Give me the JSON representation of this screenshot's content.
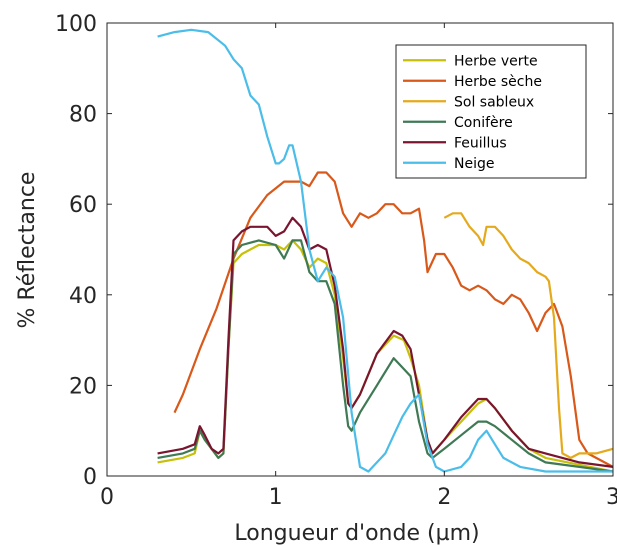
{
  "chart_data": {
    "type": "line",
    "title": "",
    "xlabel": "Longueur d'onde (µm)",
    "ylabel": "% Réflectance",
    "xlim": [
      0,
      3
    ],
    "ylim": [
      0,
      100
    ],
    "xticks": [
      0,
      1,
      2,
      3
    ],
    "yticks": [
      0,
      20,
      40,
      60,
      80,
      100
    ],
    "xtick_labels": [
      "0",
      "1",
      "2",
      "3"
    ],
    "ytick_labels": [
      "0",
      "20",
      "40",
      "60",
      "80",
      "100"
    ],
    "grid": false,
    "legend_position": "top-right",
    "series": [
      {
        "name": "Herbe verte",
        "color": "#c6c00a",
        "points": [
          [
            0.3,
            3
          ],
          [
            0.45,
            4
          ],
          [
            0.52,
            5
          ],
          [
            0.55,
            10
          ],
          [
            0.58,
            8
          ],
          [
            0.62,
            6
          ],
          [
            0.66,
            4
          ],
          [
            0.69,
            5
          ],
          [
            0.72,
            28
          ],
          [
            0.75,
            47
          ],
          [
            0.8,
            49
          ],
          [
            0.9,
            51
          ],
          [
            1.0,
            51
          ],
          [
            1.05,
            50
          ],
          [
            1.1,
            52
          ],
          [
            1.15,
            50
          ],
          [
            1.2,
            46
          ],
          [
            1.25,
            48
          ],
          [
            1.3,
            47
          ],
          [
            1.35,
            40
          ],
          [
            1.4,
            26
          ],
          [
            1.43,
            16
          ],
          [
            1.45,
            15
          ],
          [
            1.5,
            18
          ],
          [
            1.6,
            27
          ],
          [
            1.7,
            31
          ],
          [
            1.76,
            30
          ],
          [
            1.8,
            26
          ],
          [
            1.85,
            20
          ],
          [
            1.9,
            8
          ],
          [
            1.93,
            5
          ],
          [
            2.0,
            8
          ],
          [
            2.1,
            12
          ],
          [
            2.2,
            16
          ],
          [
            2.25,
            17
          ],
          [
            2.3,
            15
          ],
          [
            2.4,
            10
          ],
          [
            2.5,
            6
          ],
          [
            2.6,
            4
          ],
          [
            3.0,
            1
          ]
        ]
      },
      {
        "name": "Herbe sèche",
        "color": "#d8591a",
        "points": [
          [
            0.4,
            14
          ],
          [
            0.45,
            18
          ],
          [
            0.55,
            28
          ],
          [
            0.65,
            37
          ],
          [
            0.75,
            48
          ],
          [
            0.85,
            57
          ],
          [
            0.95,
            62
          ],
          [
            1.05,
            65
          ],
          [
            1.15,
            65
          ],
          [
            1.2,
            64
          ],
          [
            1.25,
            67
          ],
          [
            1.3,
            67
          ],
          [
            1.35,
            65
          ],
          [
            1.4,
            58
          ],
          [
            1.45,
            55
          ],
          [
            1.5,
            58
          ],
          [
            1.55,
            57
          ],
          [
            1.6,
            58
          ],
          [
            1.65,
            60
          ],
          [
            1.7,
            60
          ],
          [
            1.75,
            58
          ],
          [
            1.8,
            58
          ],
          [
            1.85,
            59
          ],
          [
            1.88,
            52
          ],
          [
            1.9,
            45
          ],
          [
            1.95,
            49
          ],
          [
            2.0,
            49
          ],
          [
            2.05,
            46
          ],
          [
            2.1,
            42
          ],
          [
            2.15,
            41
          ],
          [
            2.2,
            42
          ],
          [
            2.25,
            41
          ],
          [
            2.3,
            39
          ],
          [
            2.35,
            38
          ],
          [
            2.4,
            40
          ],
          [
            2.45,
            39
          ],
          [
            2.5,
            36
          ],
          [
            2.55,
            32
          ],
          [
            2.6,
            36
          ],
          [
            2.65,
            38
          ],
          [
            2.7,
            33
          ],
          [
            2.75,
            22
          ],
          [
            2.8,
            8
          ],
          [
            2.85,
            5
          ],
          [
            2.95,
            3
          ],
          [
            3.0,
            2
          ]
        ]
      },
      {
        "name": "Sol sableux",
        "color": "#e5aa1c",
        "points": [
          [
            2.0,
            57
          ],
          [
            2.05,
            58
          ],
          [
            2.1,
            58
          ],
          [
            2.15,
            55
          ],
          [
            2.2,
            53
          ],
          [
            2.23,
            51
          ],
          [
            2.25,
            55
          ],
          [
            2.3,
            55
          ],
          [
            2.35,
            53
          ],
          [
            2.4,
            50
          ],
          [
            2.45,
            48
          ],
          [
            2.5,
            47
          ],
          [
            2.55,
            45
          ],
          [
            2.6,
            44
          ],
          [
            2.62,
            43
          ],
          [
            2.65,
            35
          ],
          [
            2.68,
            15
          ],
          [
            2.7,
            5
          ],
          [
            2.75,
            4
          ],
          [
            2.8,
            5
          ],
          [
            2.9,
            5
          ],
          [
            3.0,
            6
          ]
        ]
      },
      {
        "name": "Conifère",
        "color": "#3f7a55",
        "points": [
          [
            0.3,
            4
          ],
          [
            0.45,
            5
          ],
          [
            0.52,
            6
          ],
          [
            0.55,
            10
          ],
          [
            0.58,
            8
          ],
          [
            0.62,
            6
          ],
          [
            0.66,
            4
          ],
          [
            0.69,
            5
          ],
          [
            0.72,
            28
          ],
          [
            0.75,
            49
          ],
          [
            0.8,
            51
          ],
          [
            0.9,
            52
          ],
          [
            1.0,
            51
          ],
          [
            1.05,
            48
          ],
          [
            1.1,
            52
          ],
          [
            1.15,
            52
          ],
          [
            1.2,
            45
          ],
          [
            1.25,
            43
          ],
          [
            1.3,
            43
          ],
          [
            1.35,
            38
          ],
          [
            1.4,
            20
          ],
          [
            1.43,
            11
          ],
          [
            1.45,
            10
          ],
          [
            1.5,
            14
          ],
          [
            1.6,
            20
          ],
          [
            1.7,
            26
          ],
          [
            1.75,
            24
          ],
          [
            1.8,
            22
          ],
          [
            1.85,
            12
          ],
          [
            1.9,
            5
          ],
          [
            1.93,
            4
          ],
          [
            2.0,
            6
          ],
          [
            2.1,
            9
          ],
          [
            2.2,
            12
          ],
          [
            2.25,
            12
          ],
          [
            2.3,
            11
          ],
          [
            2.4,
            8
          ],
          [
            2.5,
            5
          ],
          [
            2.6,
            3
          ],
          [
            2.8,
            2
          ],
          [
            3.0,
            1
          ]
        ]
      },
      {
        "name": "Feuillus",
        "color": "#7a1530",
        "points": [
          [
            0.3,
            5
          ],
          [
            0.45,
            6
          ],
          [
            0.52,
            7
          ],
          [
            0.55,
            11
          ],
          [
            0.58,
            9
          ],
          [
            0.62,
            6
          ],
          [
            0.66,
            5
          ],
          [
            0.69,
            6
          ],
          [
            0.72,
            30
          ],
          [
            0.75,
            52
          ],
          [
            0.8,
            54
          ],
          [
            0.85,
            55
          ],
          [
            0.95,
            55
          ],
          [
            1.0,
            53
          ],
          [
            1.05,
            54
          ],
          [
            1.1,
            57
          ],
          [
            1.15,
            55
          ],
          [
            1.2,
            50
          ],
          [
            1.25,
            51
          ],
          [
            1.3,
            50
          ],
          [
            1.35,
            42
          ],
          [
            1.4,
            28
          ],
          [
            1.43,
            16
          ],
          [
            1.45,
            15
          ],
          [
            1.5,
            18
          ],
          [
            1.6,
            27
          ],
          [
            1.7,
            32
          ],
          [
            1.75,
            31
          ],
          [
            1.8,
            28
          ],
          [
            1.85,
            18
          ],
          [
            1.9,
            8
          ],
          [
            1.93,
            5
          ],
          [
            2.0,
            8
          ],
          [
            2.1,
            13
          ],
          [
            2.2,
            17
          ],
          [
            2.25,
            17
          ],
          [
            2.3,
            15
          ],
          [
            2.4,
            10
          ],
          [
            2.5,
            6
          ],
          [
            2.6,
            5
          ],
          [
            2.8,
            3
          ],
          [
            3.0,
            2
          ]
        ]
      },
      {
        "name": "Neige",
        "color": "#4bbde9",
        "points": [
          [
            0.3,
            97
          ],
          [
            0.4,
            98
          ],
          [
            0.5,
            98.5
          ],
          [
            0.6,
            98
          ],
          [
            0.7,
            95
          ],
          [
            0.75,
            92
          ],
          [
            0.8,
            90
          ],
          [
            0.85,
            84
          ],
          [
            0.9,
            82
          ],
          [
            0.95,
            75
          ],
          [
            1.0,
            69
          ],
          [
            1.02,
            69
          ],
          [
            1.05,
            70
          ],
          [
            1.08,
            73
          ],
          [
            1.1,
            73
          ],
          [
            1.15,
            65
          ],
          [
            1.2,
            50
          ],
          [
            1.25,
            43
          ],
          [
            1.3,
            46
          ],
          [
            1.35,
            44
          ],
          [
            1.4,
            35
          ],
          [
            1.45,
            14
          ],
          [
            1.5,
            2
          ],
          [
            1.55,
            1
          ],
          [
            1.6,
            3
          ],
          [
            1.65,
            5
          ],
          [
            1.7,
            9
          ],
          [
            1.75,
            13
          ],
          [
            1.8,
            16
          ],
          [
            1.85,
            18
          ],
          [
            1.9,
            7
          ],
          [
            1.95,
            2
          ],
          [
            2.0,
            1
          ],
          [
            2.1,
            2
          ],
          [
            2.15,
            4
          ],
          [
            2.2,
            8
          ],
          [
            2.25,
            10
          ],
          [
            2.3,
            7
          ],
          [
            2.35,
            4
          ],
          [
            2.45,
            2
          ],
          [
            2.6,
            1
          ],
          [
            3.0,
            1
          ]
        ]
      }
    ]
  }
}
